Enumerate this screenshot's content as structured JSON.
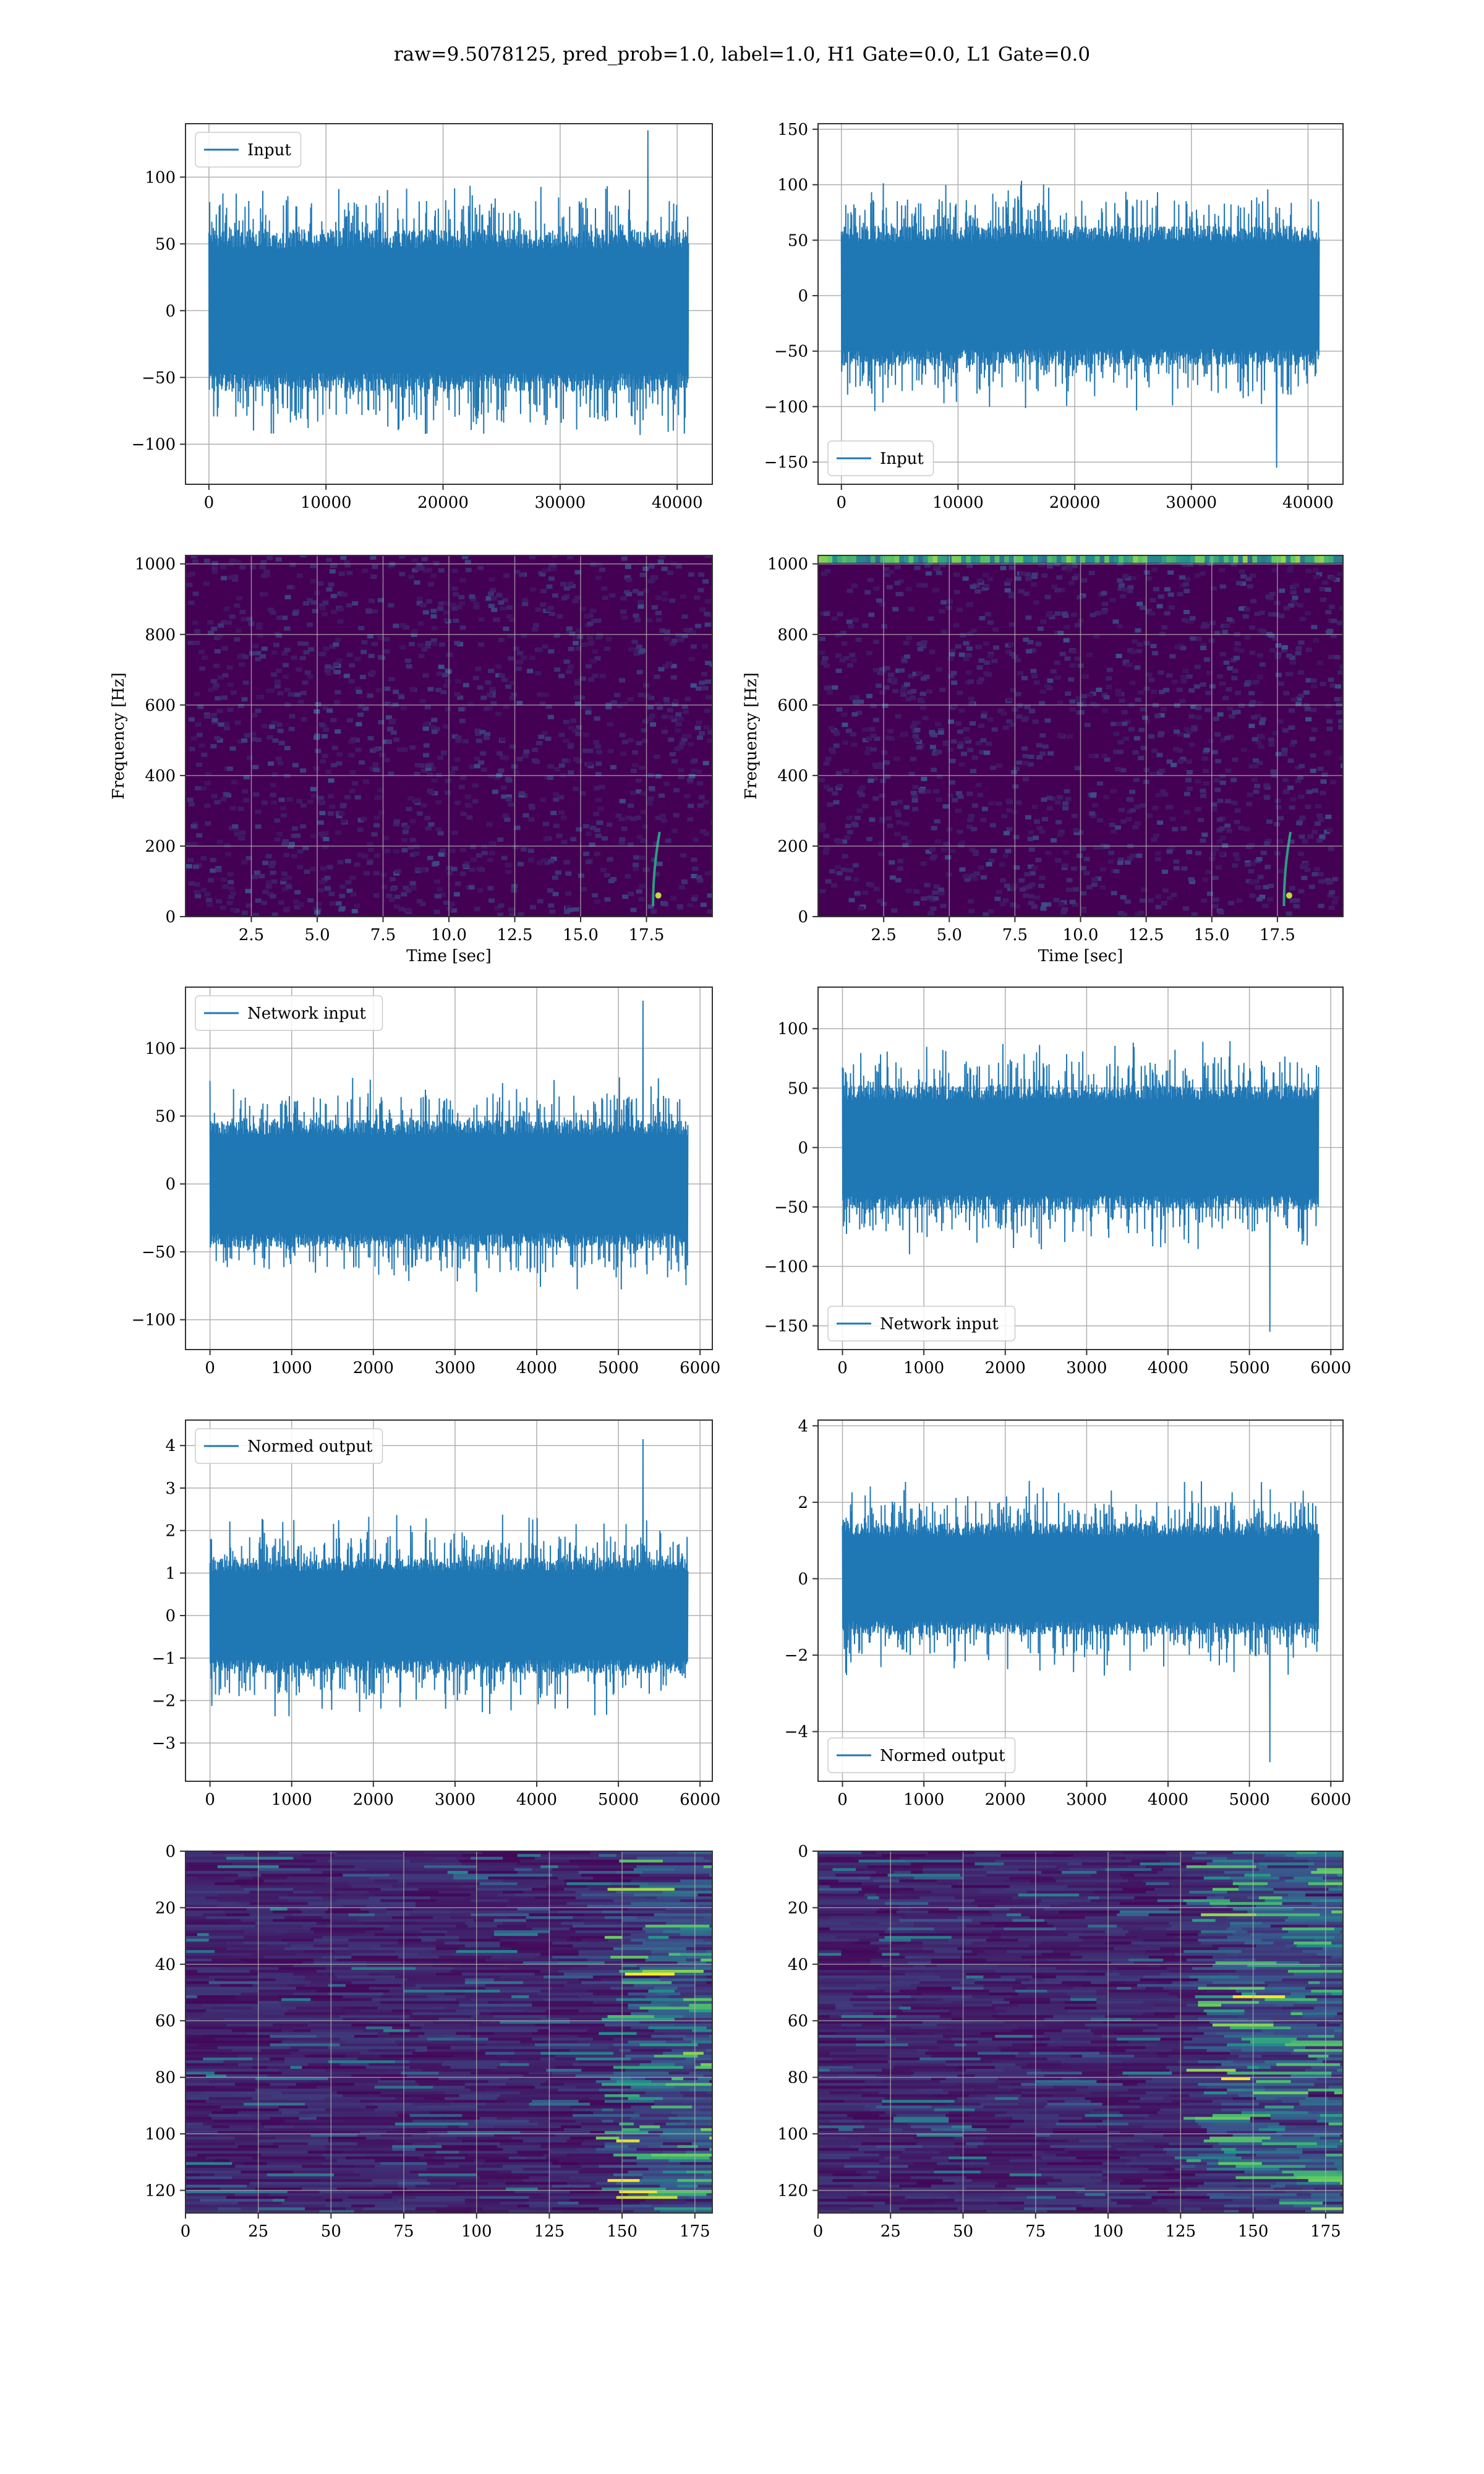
{
  "title": "raw=9.5078125, pred_prob=1.0, label=1.0, H1 Gate=0.0, L1 Gate=0.0",
  "colors": {
    "line": "#1f77b4",
    "grid": "#b0b0b0",
    "viridis": [
      "#440154",
      "#3b528b",
      "#21918c",
      "#5ec962",
      "#fde725"
    ]
  },
  "chart_data": [
    {
      "panel": "input-h1",
      "type": "line",
      "legend": "Input",
      "legend_loc": "upper left",
      "xlim": [
        -2000,
        43000
      ],
      "ylim": [
        -130,
        140
      ],
      "xticks": [
        0,
        10000,
        20000,
        30000,
        40000
      ],
      "yticks": [
        -100,
        -50,
        0,
        50,
        100
      ],
      "signal": {
        "n": 40960,
        "core": 58,
        "spike": 95,
        "extreme": 135,
        "extreme_at": 37500
      },
      "grid": true
    },
    {
      "panel": "input-l1",
      "type": "line",
      "legend": "Input",
      "legend_loc": "lower left",
      "xlim": [
        -2000,
        43000
      ],
      "ylim": [
        -170,
        155
      ],
      "xticks": [
        0,
        10000,
        20000,
        30000,
        40000
      ],
      "yticks": [
        -150,
        -100,
        -50,
        0,
        50,
        100,
        150
      ],
      "signal": {
        "n": 40960,
        "core": 60,
        "spike": 105,
        "extreme": -155,
        "extreme_at": 37300
      },
      "grid": true
    },
    {
      "panel": "spectrogram-h1",
      "type": "heatmap",
      "xlabel": "Time [sec]",
      "ylabel": "Frequency [Hz]",
      "xlim": [
        0,
        20
      ],
      "ylim": [
        0,
        1024
      ],
      "xticks": [
        "2.5",
        "5.0",
        "7.5",
        "10.0",
        "12.5",
        "15.0",
        "17.5"
      ],
      "yticks": [
        0,
        200,
        400,
        600,
        800,
        1000
      ],
      "chirp_time": 18.0,
      "top_band": false,
      "grid": true
    },
    {
      "panel": "spectrogram-l1",
      "type": "heatmap",
      "xlabel": "Time [sec]",
      "ylabel": "Frequency [Hz]",
      "xlim": [
        0,
        20
      ],
      "ylim": [
        0,
        1024
      ],
      "xticks": [
        "2.5",
        "5.0",
        "7.5",
        "10.0",
        "12.5",
        "15.0",
        "17.5"
      ],
      "yticks": [
        0,
        200,
        400,
        600,
        800,
        1000
      ],
      "chirp_time": 18.0,
      "top_band": true,
      "grid": true
    },
    {
      "panel": "network-input-h1",
      "type": "line",
      "legend": "Network input",
      "legend_loc": "upper left",
      "xlim": [
        -300,
        6150
      ],
      "ylim": [
        -122,
        145
      ],
      "xticks": [
        0,
        1000,
        2000,
        3000,
        4000,
        5000,
        6000
      ],
      "yticks": [
        -100,
        -50,
        0,
        50,
        100
      ],
      "signal": {
        "n": 5850,
        "core": 45,
        "spike": 80,
        "extreme": 135,
        "extreme_at": 5300
      },
      "grid": true
    },
    {
      "panel": "network-input-l1",
      "type": "line",
      "legend": "Network input",
      "legend_loc": "lower left",
      "xlim": [
        -300,
        6150
      ],
      "ylim": [
        -170,
        135
      ],
      "xticks": [
        0,
        1000,
        2000,
        3000,
        4000,
        5000,
        6000
      ],
      "yticks": [
        -150,
        -100,
        -50,
        0,
        50,
        100
      ],
      "signal": {
        "n": 5850,
        "core": 50,
        "spike": 90,
        "extreme": -155,
        "extreme_at": 5250
      },
      "grid": true
    },
    {
      "panel": "normed-output-h1",
      "type": "line",
      "legend": "Normed output",
      "legend_loc": "upper left",
      "xlim": [
        -300,
        6150
      ],
      "ylim": [
        -3.9,
        4.6
      ],
      "xticks": [
        0,
        1000,
        2000,
        3000,
        4000,
        5000,
        6000
      ],
      "yticks": [
        -3,
        -2,
        -1,
        0,
        1,
        2,
        3,
        4
      ],
      "signal": {
        "n": 5850,
        "core": 1.3,
        "spike": 2.4,
        "extreme": 4.15,
        "extreme_at": 5300
      },
      "grid": true
    },
    {
      "panel": "normed-output-l1",
      "type": "line",
      "legend": "Normed output",
      "legend_loc": "lower left",
      "xlim": [
        -300,
        6150
      ],
      "ylim": [
        -5.3,
        4.15
      ],
      "xticks": [
        0,
        1000,
        2000,
        3000,
        4000,
        5000,
        6000
      ],
      "yticks": [
        -4,
        -2,
        0,
        2,
        4
      ],
      "signal": {
        "n": 5850,
        "core": 1.4,
        "spike": 2.6,
        "extreme": -4.8,
        "extreme_at": 5250
      },
      "grid": true
    },
    {
      "panel": "feature-map-h1",
      "type": "heatmap",
      "xlim": [
        0,
        181
      ],
      "ylim": [
        128,
        0
      ],
      "xticks": [
        0,
        25,
        50,
        75,
        100,
        125,
        150,
        175
      ],
      "yticks": [
        0,
        20,
        40,
        60,
        80,
        100,
        120
      ],
      "hot_from": 140,
      "grid": true
    },
    {
      "panel": "feature-map-l1",
      "type": "heatmap",
      "xlim": [
        0,
        181
      ],
      "ylim": [
        128,
        0
      ],
      "xticks": [
        0,
        25,
        50,
        75,
        100,
        125,
        150,
        175
      ],
      "yticks": [
        0,
        20,
        40,
        60,
        80,
        100,
        120
      ],
      "hot_from": 125,
      "grid": true
    }
  ]
}
